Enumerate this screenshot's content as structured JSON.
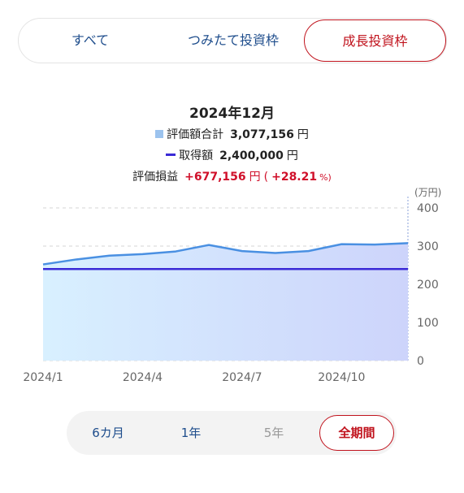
{
  "tabs": [
    {
      "label": "すべて",
      "active": false
    },
    {
      "label": "つみたて投資枠",
      "active": false
    },
    {
      "label": "成長投資枠",
      "active": true
    }
  ],
  "summary": {
    "date": "2024年12月",
    "valuation_label": "評価額合計",
    "valuation_value": "3,077,156",
    "acquisition_label": "取得額",
    "acquisition_value": "2,400,000",
    "unit": "円",
    "pl_label": "評価損益",
    "pl_value": "+677,156",
    "pl_paren_open": "(",
    "pl_percent": "+28.21",
    "pl_percent_unit": "%)"
  },
  "colors": {
    "accent_red": "#c0121c",
    "profit_red": "#d0102a",
    "valuation_line": "#4a90e2",
    "acquisition_line": "#3a2ad6",
    "nav_blue": "#1e4d8c"
  },
  "chart_data": {
    "type": "area",
    "unit_label": "(万円)",
    "x": [
      "2024/1",
      "2024/2",
      "2024/3",
      "2024/4",
      "2024/5",
      "2024/6",
      "2024/7",
      "2024/8",
      "2024/9",
      "2024/10",
      "2024/11",
      "2024/12"
    ],
    "xticks": [
      "2024/1",
      "2024/4",
      "2024/7",
      "2024/10"
    ],
    "yticks": [
      0,
      100,
      200,
      300,
      400
    ],
    "ylim": [
      0,
      400
    ],
    "grid": true,
    "series": [
      {
        "name": "評価額合計",
        "type": "area",
        "values": [
          252,
          265,
          275,
          279,
          286,
          303,
          287,
          282,
          287,
          305,
          304,
          307.7
        ]
      },
      {
        "name": "取得額",
        "type": "line",
        "values": [
          240,
          240,
          240,
          240,
          240,
          240,
          240,
          240,
          240,
          240,
          240,
          240
        ]
      }
    ]
  },
  "period_buttons": [
    {
      "label": "6カ月",
      "enabled": true,
      "active": false
    },
    {
      "label": "1年",
      "enabled": true,
      "active": false
    },
    {
      "label": "5年",
      "enabled": false,
      "active": false
    },
    {
      "label": "全期間",
      "enabled": true,
      "active": true
    }
  ]
}
